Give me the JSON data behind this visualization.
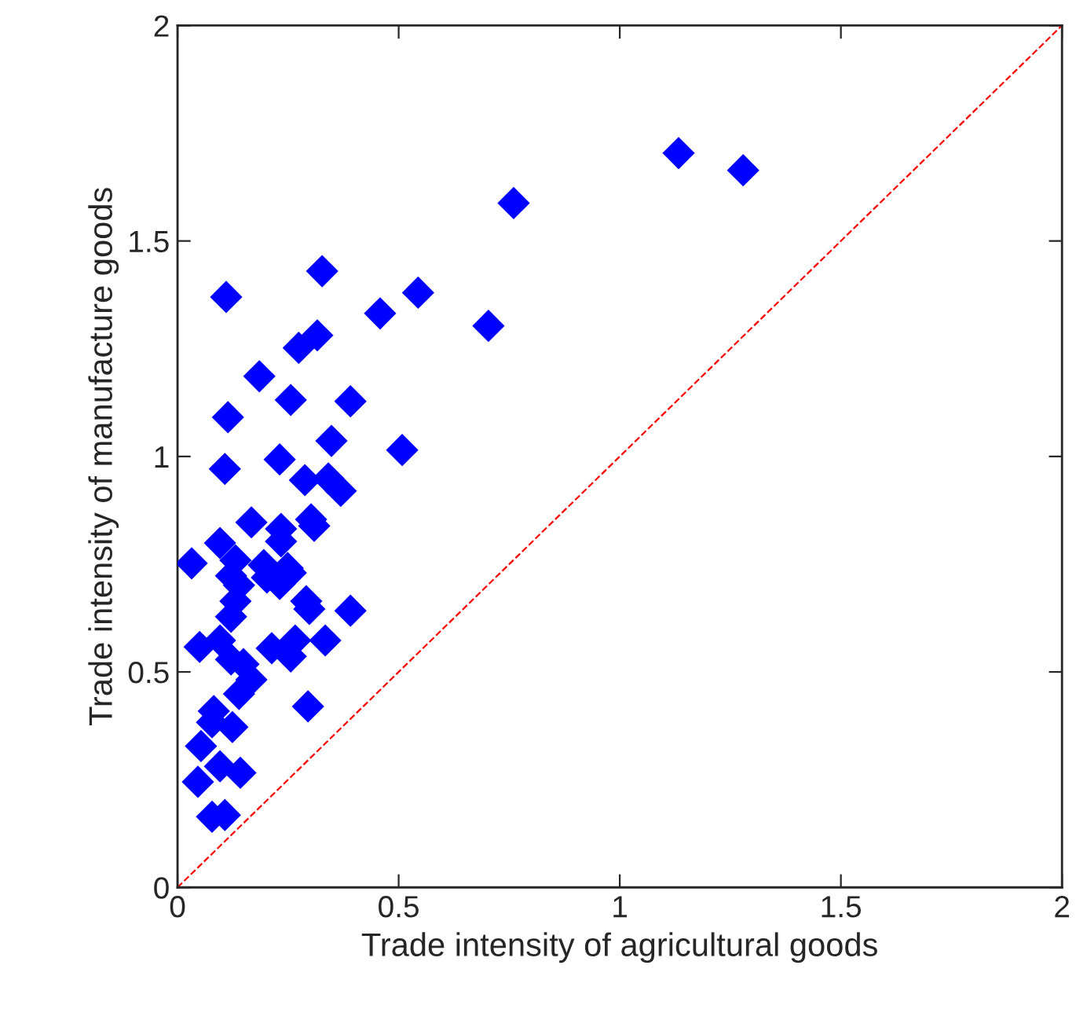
{
  "chart_data": {
    "type": "scatter",
    "xlabel": "Trade intensity of agricultural goods",
    "ylabel": "Trade intensity of manufacture goods",
    "xlim": [
      0,
      2
    ],
    "ylim": [
      0,
      2
    ],
    "xticks": [
      0,
      0.5,
      1,
      1.5,
      2
    ],
    "yticks": [
      0,
      0.5,
      1,
      1.5,
      2
    ],
    "grid": false,
    "legend": false,
    "series": [
      {
        "color": "#0000ff",
        "marker": "diamond",
        "x": [
          1.133,
          1.279,
          0.76,
          0.703,
          0.544,
          0.458,
          0.508,
          0.391,
          0.327,
          0.316,
          0.11,
          0.274,
          0.185,
          0.114,
          0.256,
          0.348,
          0.107,
          0.231,
          0.288,
          0.341,
          0.369,
          0.302,
          0.309,
          0.167,
          0.234,
          0.234,
          0.096,
          0.032,
          0.131,
          0.121,
          0.195,
          0.202,
          0.249,
          0.231,
          0.256,
          0.139,
          0.291,
          0.298,
          0.391,
          0.131,
          0.121,
          0.05,
          0.096,
          0.213,
          0.266,
          0.256,
          0.334,
          0.121,
          0.149,
          0.167,
          0.139,
          0.082,
          0.078,
          0.124,
          0.295,
          0.053,
          0.096,
          0.142,
          0.046,
          0.078,
          0.107
        ],
        "values": [
          1.704,
          1.664,
          1.588,
          1.303,
          1.38,
          1.332,
          1.015,
          1.128,
          1.43,
          1.281,
          1.37,
          1.252,
          1.186,
          1.091,
          1.131,
          1.036,
          0.971,
          0.993,
          0.945,
          0.949,
          0.92,
          0.854,
          0.839,
          0.847,
          0.832,
          0.803,
          0.799,
          0.752,
          0.759,
          0.723,
          0.748,
          0.719,
          0.741,
          0.704,
          0.73,
          0.701,
          0.664,
          0.646,
          0.642,
          0.664,
          0.628,
          0.558,
          0.573,
          0.555,
          0.573,
          0.536,
          0.573,
          0.529,
          0.518,
          0.482,
          0.449,
          0.409,
          0.383,
          0.372,
          0.42,
          0.328,
          0.281,
          0.266,
          0.245,
          0.164,
          0.168
        ]
      },
      {
        "type": "line",
        "color": "#ff0000",
        "line_style": "dashed",
        "x": [
          0,
          2
        ],
        "values": [
          0,
          2
        ]
      }
    ]
  }
}
